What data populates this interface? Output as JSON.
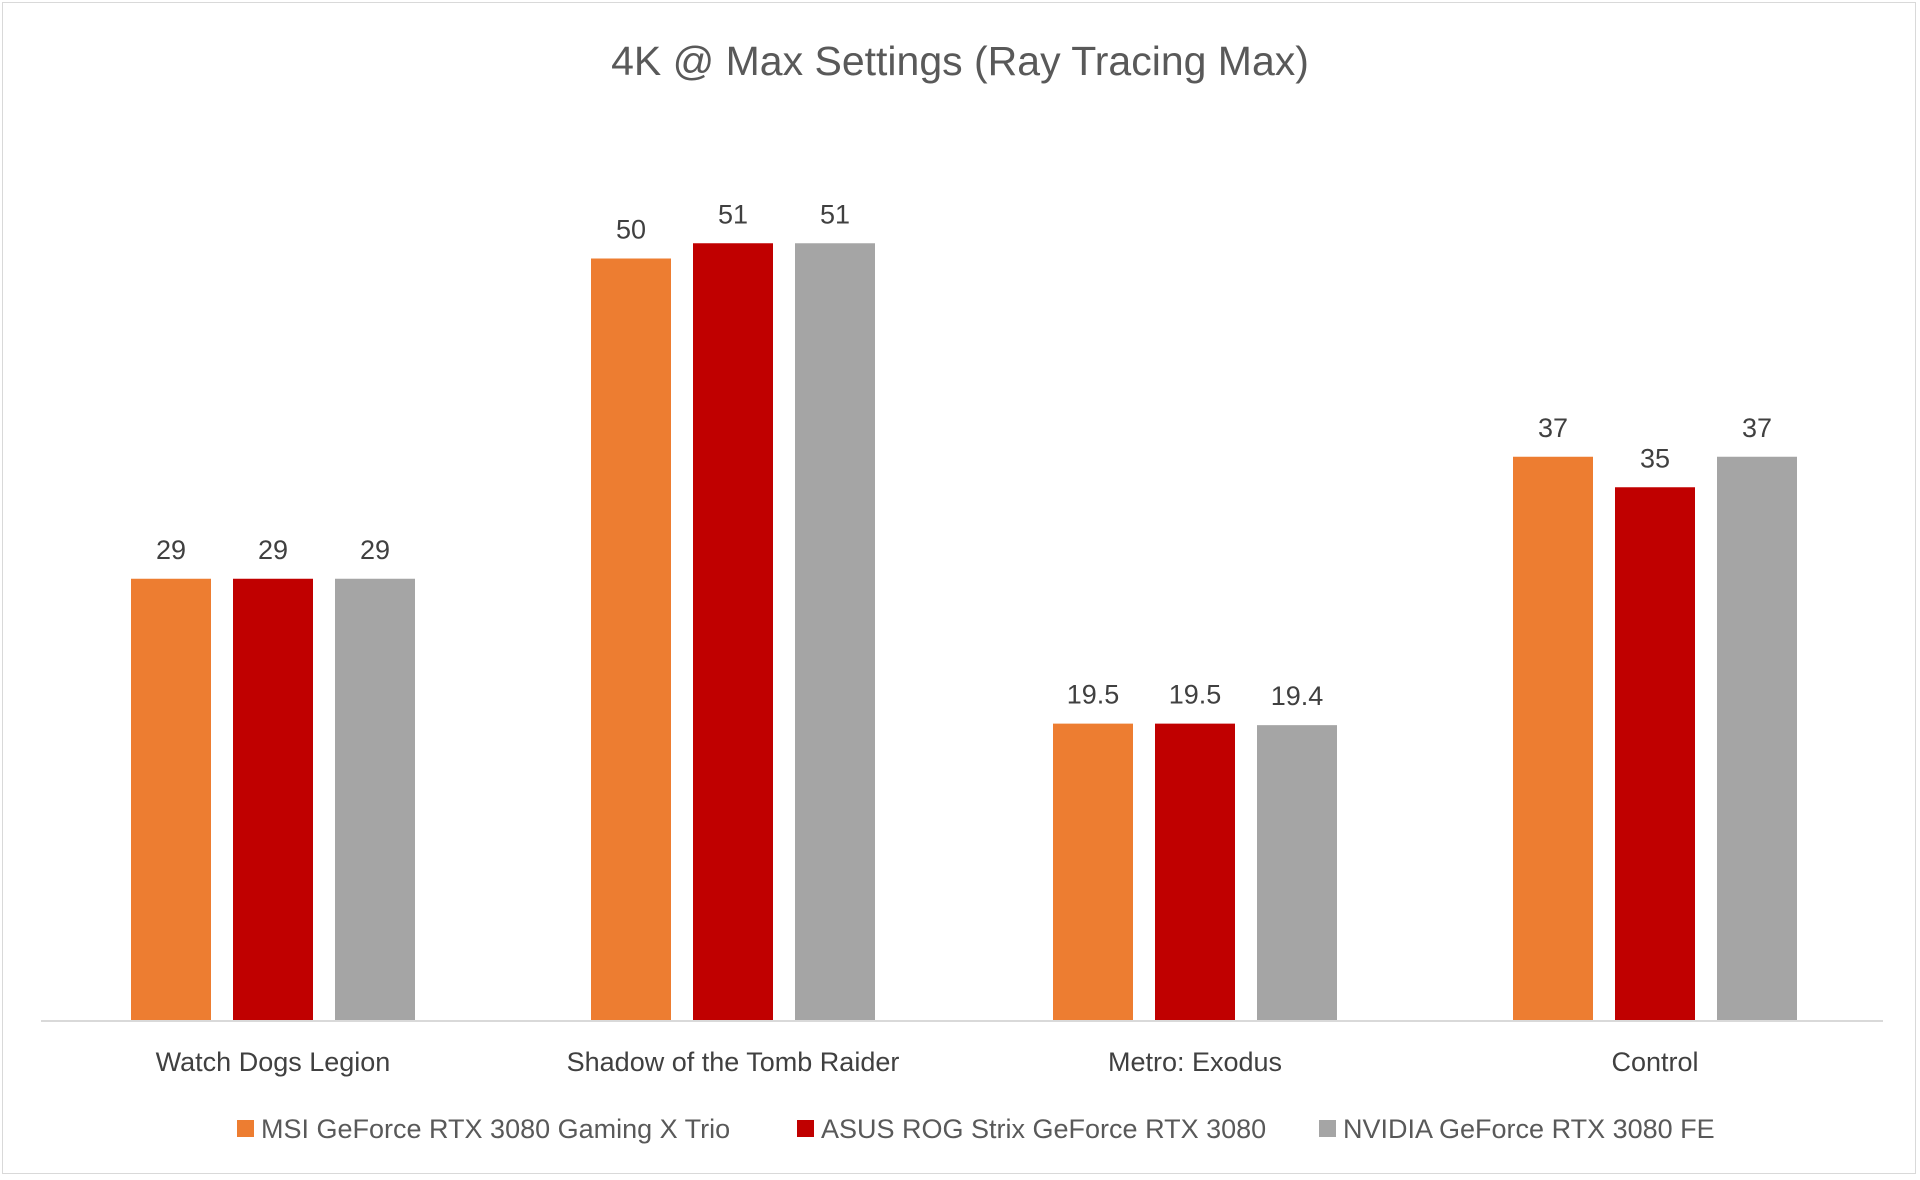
{
  "chart_data": {
    "type": "bar",
    "title": "4K @ Max Settings (Ray Tracing Max)",
    "xlabel": "",
    "ylabel": "",
    "ylim": [
      0,
      60
    ],
    "grid": false,
    "legend_position": "bottom",
    "categories": [
      "Watch Dogs Legion",
      "Shadow of the Tomb Raider",
      "Metro: Exodus",
      "Control"
    ],
    "series": [
      {
        "name": "MSI GeForce RTX 3080 Gaming X Trio",
        "color": "#ed7d31",
        "values": [
          29,
          50,
          19.5,
          37
        ]
      },
      {
        "name": "ASUS ROG Strix GeForce RTX 3080",
        "color": "#c00000",
        "values": [
          29,
          51,
          19.5,
          35
        ]
      },
      {
        "name": "NVIDIA GeForce RTX 3080 FE",
        "color": "#a5a5a5",
        "values": [
          29,
          51,
          19.4,
          37
        ]
      }
    ]
  }
}
